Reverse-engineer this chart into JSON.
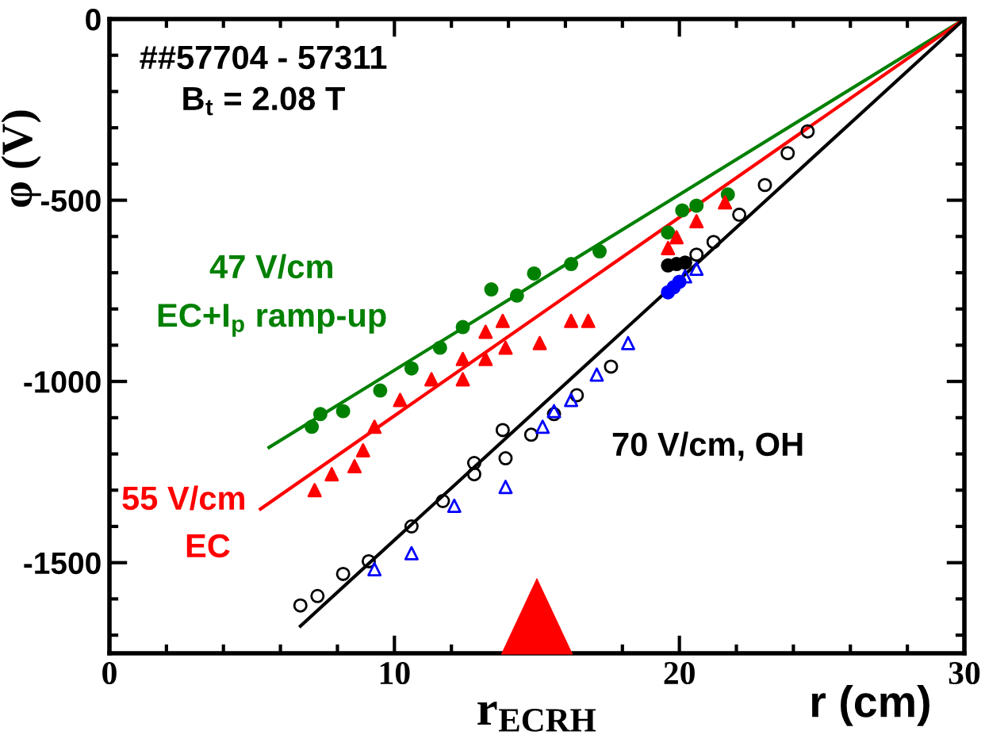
{
  "chart_data": {
    "type": "scatter",
    "xlabel": "r (cm)",
    "ylabel": "φ (V)",
    "xlim": [
      0,
      30
    ],
    "ylim": [
      -1750,
      0
    ],
    "xticks": [
      0,
      10,
      20,
      30
    ],
    "yticks": [
      0,
      -500,
      -1000,
      -1500
    ],
    "grid": false,
    "legend": false,
    "series": [
      {
        "type": "line",
        "color": "#008000",
        "x": [
          5.6,
          30
        ],
        "values": [
          -1182,
          0
        ]
      },
      {
        "type": "line",
        "color": "#ff0000",
        "x": [
          5.3,
          30
        ],
        "values": [
          -1352,
          0
        ]
      },
      {
        "type": "line",
        "color": "#000000",
        "x": [
          6.7,
          30
        ],
        "values": [
          -1675,
          0
        ]
      },
      {
        "marker": "circle",
        "color": "#008000",
        "x": [
          7.1,
          7.4,
          8.2,
          9.5,
          10.6,
          11.6,
          12.4,
          13.4,
          14.3,
          14.9,
          16.2,
          17.2
        ],
        "values": [
          -1125,
          -1090,
          -1082,
          -1025,
          -964,
          -907,
          -850,
          -746,
          -763,
          -702,
          -676,
          -641
        ]
      },
      {
        "marker": "circle",
        "color": "#008000",
        "x": [
          19.6,
          20.1,
          20.6,
          21.7
        ],
        "values": [
          -589,
          -528,
          -515,
          -484
        ]
      },
      {
        "marker": "triangle",
        "color": "#ff0000",
        "x": [
          7.2,
          7.8,
          8.6,
          8.9,
          9.3,
          10.2,
          11.3,
          12.4,
          13.2,
          13.8
        ],
        "values": [
          -1300,
          -1256,
          -1234,
          -1190,
          -1125,
          -1051,
          -994,
          -938,
          -863,
          -833
        ]
      },
      {
        "marker": "triangle",
        "color": "#ff0000",
        "x": [
          12.4,
          13.2,
          13.9,
          15.1,
          16.2,
          16.8
        ],
        "values": [
          -994,
          -938,
          -907,
          -894,
          -833,
          -833
        ]
      },
      {
        "marker": "triangle",
        "color": "#ff0000",
        "x": [
          19.6,
          19.9,
          20.6,
          21.6
        ],
        "values": [
          -632,
          -602,
          -558,
          -506
        ]
      },
      {
        "marker": "circle",
        "color": "#000000",
        "x": [
          6.7,
          7.3,
          8.2,
          9.1,
          10.6,
          11.7,
          12.8,
          13.8
        ],
        "values": [
          -1618,
          -1592,
          -1531,
          -1496,
          -1400,
          -1330,
          -1225,
          -1134
        ]
      },
      {
        "marker": "circle",
        "color": "#000000",
        "x": [
          12.8,
          13.9,
          14.8,
          15.6,
          16.4,
          17.6
        ],
        "values": [
          -1256,
          -1212,
          -1147,
          -1090,
          -1038,
          -959
        ]
      },
      {
        "marker": "circle",
        "color": "#000000",
        "x": [
          19.6,
          19.9,
          20.2
        ],
        "values": [
          -680,
          -676,
          -672
        ]
      },
      {
        "marker": "circle",
        "color": "#000000",
        "x": [
          20.6,
          21.2,
          22.1,
          23.0,
          23.8,
          24.5
        ],
        "values": [
          -650,
          -615,
          -540,
          -458,
          -370,
          -310
        ]
      },
      {
        "marker": "triangle",
        "color": "#0000ff",
        "x": [
          9.3,
          10.6,
          12.1,
          13.9,
          15.2,
          15.6,
          16.2,
          17.1,
          18.2
        ],
        "values": [
          -1518,
          -1474,
          -1343,
          -1291,
          -1125,
          -1082,
          -1051,
          -981,
          -894
        ]
      },
      {
        "marker": "circle",
        "color": "#0000ff",
        "x": [
          19.6,
          19.8,
          20.0
        ],
        "values": [
          -754,
          -740,
          -725
        ]
      },
      {
        "marker": "triangle",
        "color": "#0000ff",
        "x": [
          20.2,
          20.6
        ],
        "values": [
          -710,
          -689
        ]
      }
    ],
    "annotations": [
      "r$_{ECRH}$",
      "##57704 - 57311",
      "B$_{t}$ = 2.08 T",
      "47 V/cm",
      "EC+I$_{p}$ ramp-up",
      "55 V/cm",
      "EC",
      "70 V/cm, OH"
    ]
  }
}
